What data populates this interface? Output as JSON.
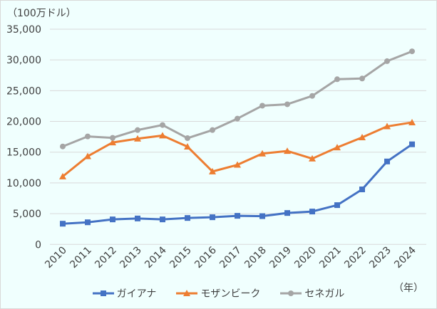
{
  "chart_data": {
    "type": "line",
    "ylabel": "（100万ドル）",
    "xlabel": "（年）",
    "ylim": [
      0,
      35000
    ],
    "yticks": [
      "0",
      "5,000",
      "10,000",
      "15,000",
      "20,000",
      "25,000",
      "30,000",
      "35,000"
    ],
    "categories": [
      "2010",
      "2011",
      "2012",
      "2013",
      "2014",
      "2015",
      "2016",
      "2017",
      "2018",
      "2019",
      "2020",
      "2021",
      "2022",
      "2023",
      "2024"
    ],
    "grid": true,
    "legend": "bottom",
    "series": [
      {
        "name": "ガイアナ",
        "color": "#4472c4",
        "marker": "square",
        "values": [
          3370,
          3600,
          4070,
          4220,
          4070,
          4300,
          4420,
          4650,
          4600,
          5110,
          5350,
          6390,
          8950,
          13490,
          16280
        ]
      },
      {
        "name": "モザンビーク",
        "color": "#ed7d31",
        "marker": "triangle",
        "values": [
          11050,
          14330,
          16580,
          17200,
          17700,
          15890,
          11860,
          12940,
          14770,
          15190,
          13950,
          15770,
          17400,
          19190,
          19840
        ]
      },
      {
        "name": "セネガル",
        "color": "#a5a5a5",
        "marker": "circle",
        "values": [
          15930,
          17560,
          17330,
          18600,
          19420,
          17280,
          18600,
          20460,
          22560,
          22790,
          24150,
          26860,
          26980,
          29800,
          31400
        ]
      }
    ]
  }
}
